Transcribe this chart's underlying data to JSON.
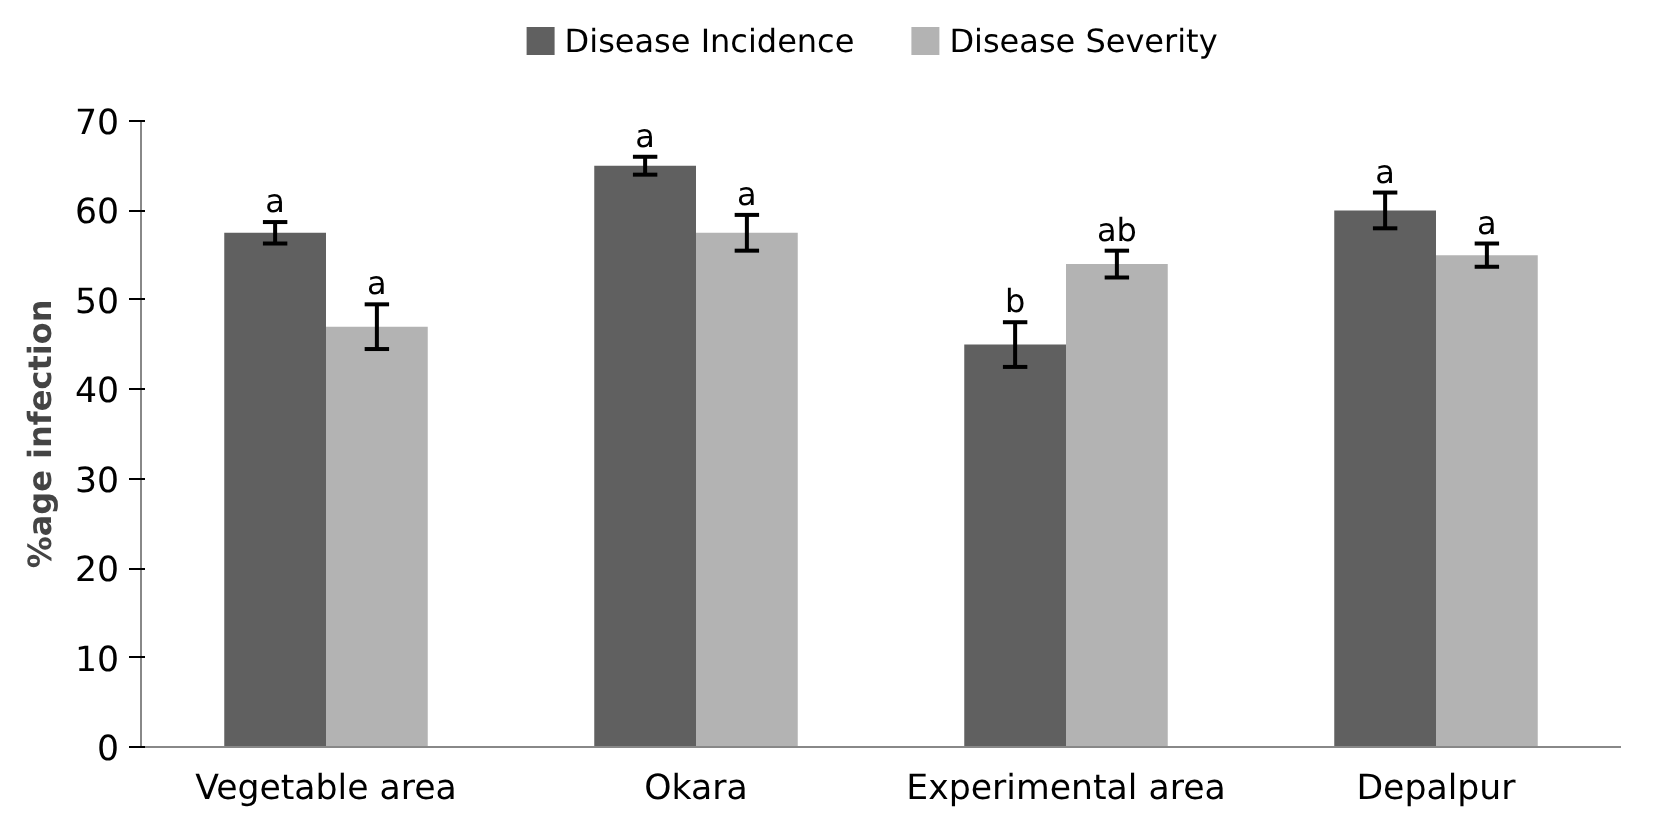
{
  "chart_data": {
    "type": "bar",
    "ylabel": "%age infection",
    "categories": [
      "Vegetable area",
      "Okara",
      "Experimental area",
      "Depalpur"
    ],
    "series": [
      {
        "name": "Disease Incidence",
        "color": "#606060",
        "values": [
          57.5,
          65,
          45,
          60
        ],
        "errors": [
          1.2,
          1,
          2.5,
          2
        ]
      },
      {
        "name": "Disease Severity",
        "color": "#b3b3b3",
        "values": [
          47,
          57.5,
          54,
          55
        ],
        "errors": [
          2.5,
          2,
          1.5,
          1.3
        ]
      }
    ],
    "ylim": [
      0,
      70
    ],
    "yticks": [
      0,
      10,
      20,
      30,
      40,
      50,
      60,
      70
    ],
    "grid": false,
    "legend": "top",
    "annotations": [
      "a",
      "a",
      "a",
      "a",
      "b",
      "ab",
      "a",
      "a"
    ]
  }
}
